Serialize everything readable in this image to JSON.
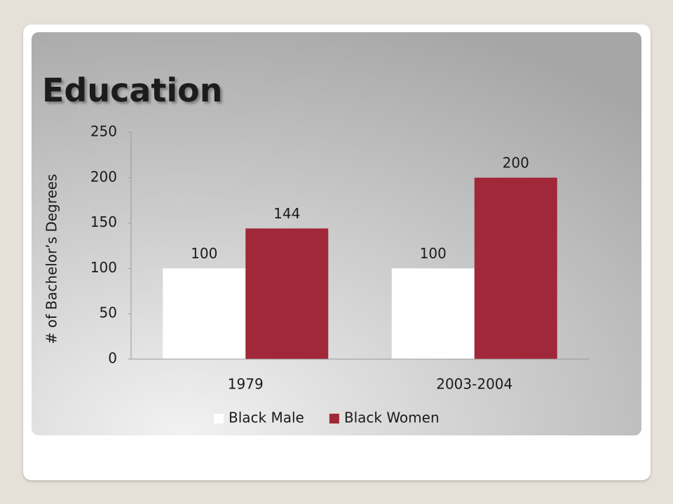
{
  "chart_data": {
    "type": "bar",
    "title": "Education",
    "y_label": "# of Bachelor’s Degrees",
    "categories": [
      "1979",
      "2003-2004"
    ],
    "series": [
      {
        "name": "Black Male",
        "color": "#ffffff",
        "values": [
          100,
          100
        ]
      },
      {
        "name": "Black Women",
        "color": "#a02838",
        "values": [
          144,
          200
        ]
      }
    ],
    "ylim": [
      0,
      250
    ],
    "yticks": [
      0,
      50,
      100,
      150,
      200,
      250
    ],
    "legend": "bottom"
  }
}
